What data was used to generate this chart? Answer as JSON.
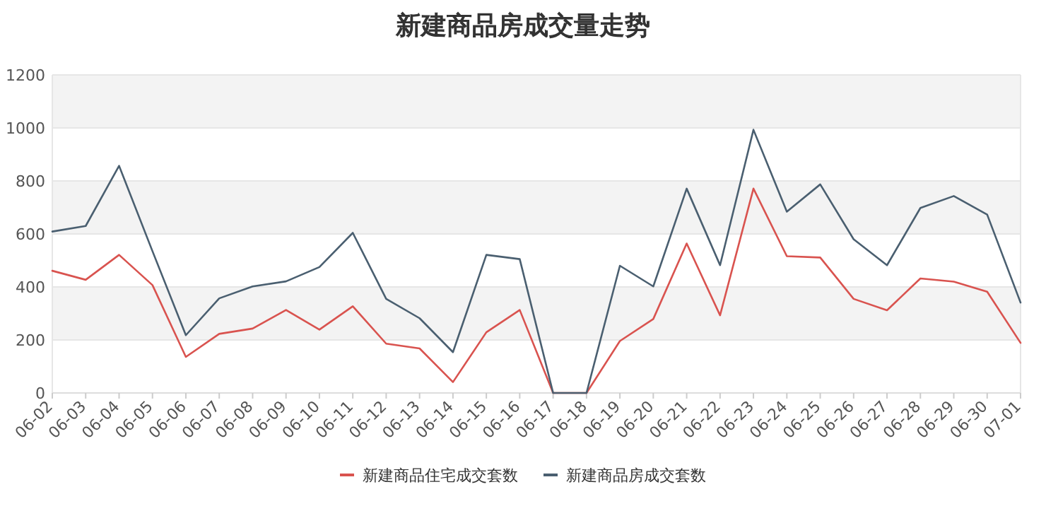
{
  "chart_data": {
    "type": "line",
    "title": "新建商品房成交量走势",
    "categories": [
      "06-02",
      "06-03",
      "06-04",
      "06-05",
      "06-06",
      "06-07",
      "06-08",
      "06-09",
      "06-10",
      "06-11",
      "06-12",
      "06-13",
      "06-14",
      "06-15",
      "06-16",
      "06-17",
      "06-18",
      "06-19",
      "06-20",
      "06-21",
      "06-22",
      "06-23",
      "06-24",
      "06-25",
      "06-26",
      "06-27",
      "06-28",
      "06-29",
      "06-30",
      "07-01"
    ],
    "series": [
      {
        "name": "新建商品住宅成交套数",
        "color": "#d9534f",
        "values": [
          461,
          427,
          521,
          407,
          136,
          223,
          243,
          313,
          239,
          327,
          186,
          168,
          41,
          229,
          313,
          0,
          0,
          196,
          279,
          564,
          293,
          771,
          516,
          511,
          355,
          312,
          432,
          420,
          382,
          189
        ]
      },
      {
        "name": "新建商品房成交套数",
        "color": "#4a5f70",
        "values": [
          609,
          630,
          857,
          535,
          218,
          357,
          402,
          421,
          475,
          604,
          355,
          282,
          154,
          521,
          505,
          0,
          0,
          480,
          402,
          771,
          482,
          993,
          684,
          787,
          580,
          482,
          698,
          743,
          673,
          341
        ]
      }
    ],
    "ylim": [
      0,
      1200
    ],
    "yticks": [
      0,
      200,
      400,
      600,
      800,
      1000,
      1200
    ],
    "grid": "y",
    "bands": [
      {
        "axis": "y",
        "from": 200,
        "to": 400,
        "color": "#f3f3f3"
      },
      {
        "axis": "y",
        "from": 600,
        "to": 800,
        "color": "#f3f3f3"
      },
      {
        "axis": "y",
        "from": 1000,
        "to": 1200,
        "color": "#f3f3f3"
      }
    ],
    "legend": "bottom",
    "line_style": "solid",
    "marker": "none"
  }
}
